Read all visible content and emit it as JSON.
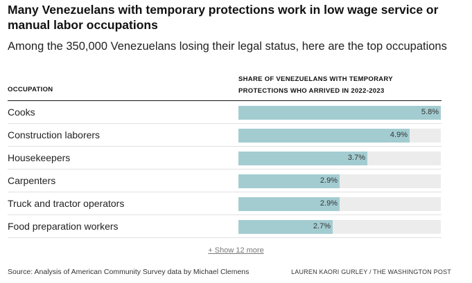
{
  "title": "Many Venezuelans with temporary protections work in low wage service or manual labor occupations",
  "subtitle": "Among the 350,000 Venezuelans losing their legal status, here are the top occupations",
  "columns": {
    "occupation": "OCCUPATION",
    "share_line1": "SHARE OF VENEZUELANS WITH TEMPORARY",
    "share_line2": "PROTECTIONS WHO ARRIVED IN 2022-2023"
  },
  "chart_data": {
    "type": "bar",
    "orientation": "horizontal",
    "categories": [
      "Cooks",
      "Construction laborers",
      "Housekeepers",
      "Carpenters",
      "Truck and tractor operators",
      "Food preparation workers"
    ],
    "values": [
      5.8,
      4.9,
      3.7,
      2.9,
      2.9,
      2.7
    ],
    "value_labels": [
      "5.8%",
      "4.9%",
      "3.7%",
      "2.9%",
      "2.9%",
      "2.7%"
    ],
    "xlim": [
      0,
      5.8
    ],
    "xlabel": "SHARE OF VENEZUELANS WITH TEMPORARY PROTECTIONS WHO ARRIVED IN 2022-2023",
    "ylabel": "OCCUPATION",
    "bar_color": "#a3ccd1",
    "track_color": "#ececec"
  },
  "show_more": "+ Show 12 more",
  "source": "Source: Analysis of American Community Survey data by Michael Clemens",
  "credit": "LAUREN KAORI GURLEY / THE WASHINGTON POST"
}
